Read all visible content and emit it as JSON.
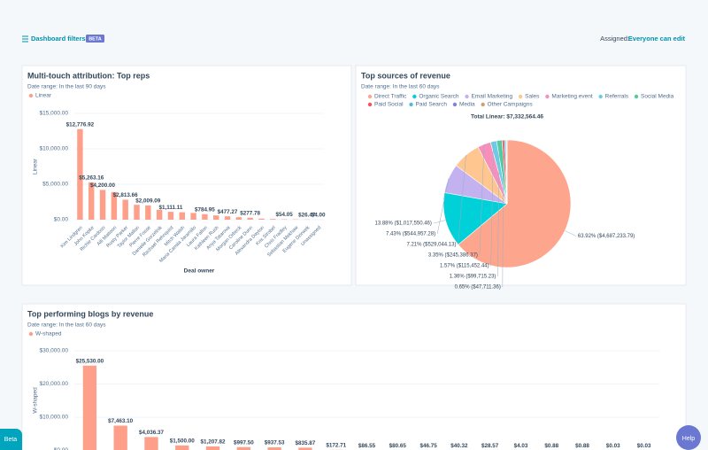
{
  "header": {
    "filters_label": "Dashboard filters",
    "badge": "BETA",
    "assigned_label": "Assigned:",
    "assigned_value": "Everyone can edit"
  },
  "buttons": {
    "beta": "Beta",
    "help": "Help"
  },
  "chart_data": [
    {
      "type": "bar",
      "title": "Multi-touch attribution: Top reps",
      "subtitle": "Date range: In the last 90 days",
      "y_label": "Linear",
      "x_label": "Deal owner",
      "categories": [
        "Kim Lindgren",
        "John Kopke",
        "Richie Cardoso",
        "Alli Mattoon",
        "Rusty Parker",
        "Taylor Mallon",
        "Pierre Fosse",
        "Danielle Gorzelnik",
        "Rachael Rehnquist",
        "Mitch Walsh",
        "Maria Camila Jaramillo",
        "Laura Fallon",
        "Kathleen Rush",
        "Anya Tatarova",
        "Morgan Orbeck",
        "Caroline Dunn",
        "Alexandra Dayton",
        "Kris Strobel",
        "Chris Fradley",
        "Sebastian Mekhaw",
        "Eugene Dzirwek",
        "Unassigned"
      ],
      "series": [
        {
          "name": "Linear",
          "color": "#fe9f8a",
          "values": [
            12776.92,
            5263.16,
            4200.0,
            3900,
            2813.66,
            2100,
            2009.09,
            1400,
            1111.11,
            1050,
            950,
            784.95,
            600,
            477.27,
            350,
            277.78,
            150,
            100,
            54.05,
            40,
            26.47,
            4.0
          ],
          "value_labels": [
            "$12,776.92",
            "$5,263.16",
            "$4,200.00",
            null,
            "$2,813.66",
            null,
            "$2,009.09",
            null,
            "$1,111.11",
            null,
            null,
            "$784.95",
            null,
            "$477.27",
            null,
            "$277.78",
            null,
            null,
            "$54.05",
            null,
            "$26.47",
            "$4.00"
          ]
        }
      ],
      "ylim": [
        0,
        15000
      ],
      "yticks": [
        {
          "value": 0,
          "label": "$0.00"
        },
        {
          "value": 5000,
          "label": "$5,000.00"
        },
        {
          "value": 10000,
          "label": "$10,000.00"
        },
        {
          "value": 15000,
          "label": "$15,000.00"
        }
      ],
      "grid": true
    },
    {
      "type": "pie",
      "title": "Top sources of revenue",
      "subtitle": "Date range: In the last 60 days",
      "total_label": "Total Linear: $7,332,564.46",
      "categories": [
        "Direct Traffic",
        "Organic Search",
        "Email Marketing",
        "Sales",
        "Marketing event",
        "Referrals",
        "Social Media",
        "Paid Social",
        "Paid Search",
        "Media",
        "Other Campaigns"
      ],
      "values": [
        63.92,
        13.88,
        7.43,
        7.21,
        3.35,
        1.57,
        1.36,
        0.65,
        0.35,
        0.18,
        0.1
      ],
      "value_labels": [
        "63.92% ($4,687,233.79)",
        "13.88% ($1,017,550.46)",
        "7.43% ($544,957.28)",
        "7.21% ($529,044.13)",
        "3.35% ($245,386.37)",
        "1.57% ($115,452.44)",
        "1.36% ($99,715.23)",
        "0.65% ($47,711.36)",
        null,
        null,
        null
      ],
      "colors": [
        "#fea58e",
        "#00d0d8",
        "#c4b1ef",
        "#ffc78f",
        "#f78fbb",
        "#6acce5",
        "#4fcc9b",
        "#f2545b",
        "#51b8e0",
        "#8a7fd6",
        "#c9a46b"
      ]
    },
    {
      "type": "bar",
      "title": "Top performing blogs by revenue",
      "subtitle": "Date range: In the last 60 days",
      "y_label": "W-shaped",
      "series": [
        {
          "name": "W-shaped",
          "color": "#fe9f8a",
          "values": [
            25530.0,
            7463.1,
            4036.37,
            1500.0,
            1207.82,
            997.5,
            937.53,
            835.87,
            172.71,
            86.55,
            80.65,
            46.75,
            40.32,
            28.57,
            4.03,
            0.88,
            0.88,
            0.03,
            0.03
          ],
          "value_labels": [
            "$25,530.00",
            "$7,463.10",
            "$4,036.37",
            "$1,500.00",
            "$1,207.82",
            "$997.50",
            "$937.53",
            "$835.87",
            "$172.71",
            "$86.55",
            "$80.65",
            "$46.75",
            "$40.32",
            "$28.57",
            "$4.03",
            "$0.88",
            "$0.88",
            "$0.03",
            "$0.03"
          ]
        }
      ],
      "ylim": [
        0,
        30000
      ],
      "yticks": [
        {
          "value": 0,
          "label": "$0.00"
        },
        {
          "value": 10000,
          "label": "$10,000.00"
        },
        {
          "value": 20000,
          "label": "$20,000.00"
        },
        {
          "value": 30000,
          "label": "$30,000.00"
        }
      ],
      "grid": true
    }
  ]
}
